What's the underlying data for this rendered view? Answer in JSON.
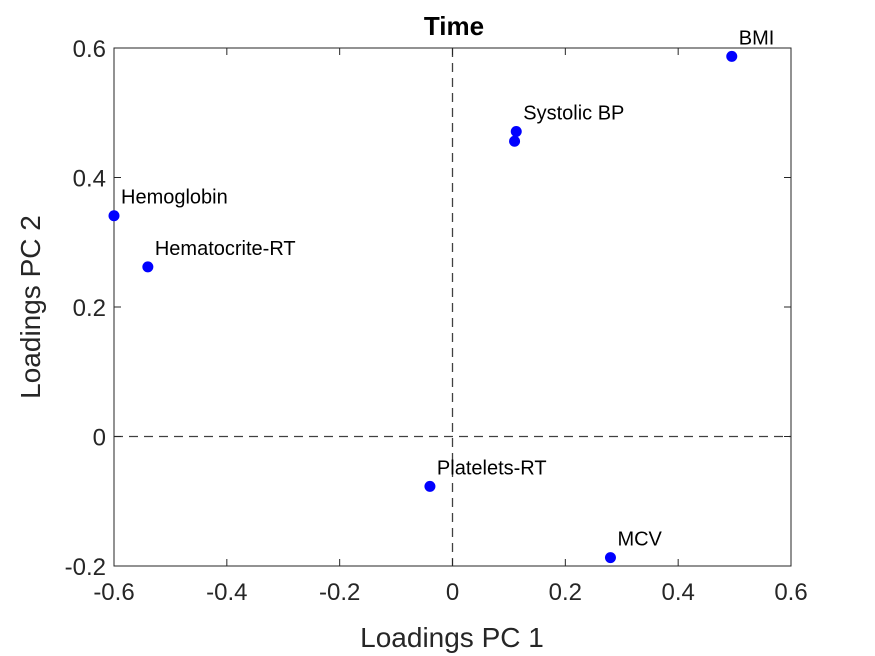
{
  "chart_data": {
    "type": "scatter",
    "title": "Time",
    "xlabel": "Loadings PC 1",
    "ylabel": "Loadings PC 2",
    "xlim": [
      -0.6,
      0.6
    ],
    "ylim": [
      -0.2,
      0.6
    ],
    "x_ticks": [
      -0.6,
      -0.4,
      -0.2,
      0,
      0.2,
      0.4,
      0.6
    ],
    "y_ticks": [
      -0.2,
      0,
      0.2,
      0.4,
      0.6
    ],
    "x_tick_labels": [
      "-0.6",
      "-0.4",
      "-0.2",
      "0",
      "0.2",
      "0.4",
      "0.6"
    ],
    "y_tick_labels": [
      "-0.2",
      "0",
      "0.2",
      "0.4",
      "0.6"
    ],
    "grid": false,
    "reference_lines": {
      "x": 0,
      "y": 0,
      "style": "dashed"
    },
    "marker_color": "#0000ff",
    "points": [
      {
        "label": "BMI",
        "x": 0.495,
        "y": 0.587
      },
      {
        "label": "Systolic BP",
        "x": 0.113,
        "y": 0.471
      },
      {
        "label": "",
        "x": 0.11,
        "y": 0.456
      },
      {
        "label": "Hemoglobin",
        "x": -0.6,
        "y": 0.341
      },
      {
        "label": "Hematocrite-RT",
        "x": -0.54,
        "y": 0.262
      },
      {
        "label": "Platelets-RT",
        "x": -0.04,
        "y": -0.077
      },
      {
        "label": "MCV",
        "x": 0.28,
        "y": -0.187
      }
    ]
  }
}
